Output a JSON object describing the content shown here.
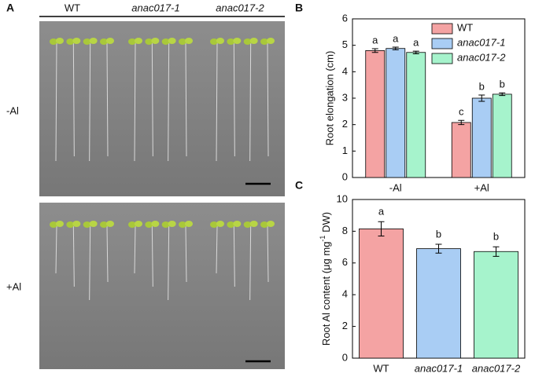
{
  "panel_a": {
    "label": "A",
    "genotypes": [
      "WT",
      "anac017-1",
      "anac017-2"
    ],
    "conditions": [
      "-Al",
      "+Al"
    ]
  },
  "chart_data": [
    {
      "type": "grouped_bar",
      "panel": "B",
      "ylabel": "Root elongation (cm)",
      "categories": [
        "-Al",
        "+Al"
      ],
      "series": [
        {
          "name": "WT",
          "color": "#f4a3a3",
          "values": [
            4.8,
            2.08
          ],
          "errors": [
            0.07,
            0.08
          ],
          "annotations": [
            "a",
            "c"
          ]
        },
        {
          "name": "anac017-1",
          "color": "#a9cdf4",
          "values": [
            4.88,
            3.0
          ],
          "errors": [
            0.05,
            0.12
          ],
          "annotations": [
            "a",
            "b"
          ]
        },
        {
          "name": "anac017-2",
          "color": "#a6f3cc",
          "values": [
            4.73,
            3.15
          ],
          "errors": [
            0.05,
            0.05
          ],
          "annotations": [
            "a",
            "b"
          ]
        }
      ],
      "ylim": [
        0,
        6
      ],
      "yticks": [
        0,
        1,
        2,
        3,
        4,
        5,
        6
      ],
      "legend": "upper right"
    },
    {
      "type": "bar",
      "panel": "C",
      "ylabel_parts": [
        "Root Al content (μg mg",
        "-1",
        " DW)"
      ],
      "categories": [
        "WT",
        "anac017-1",
        "anac017-2"
      ],
      "values": [
        8.15,
        6.9,
        6.72
      ],
      "errors": [
        0.45,
        0.28,
        0.3
      ],
      "annotations": [
        "a",
        "b",
        "b"
      ],
      "colors": [
        "#f4a3a3",
        "#a9cdf4",
        "#a6f3cc"
      ],
      "ylim": [
        0,
        10
      ],
      "yticks": [
        0,
        2,
        4,
        6,
        8,
        10
      ]
    }
  ]
}
